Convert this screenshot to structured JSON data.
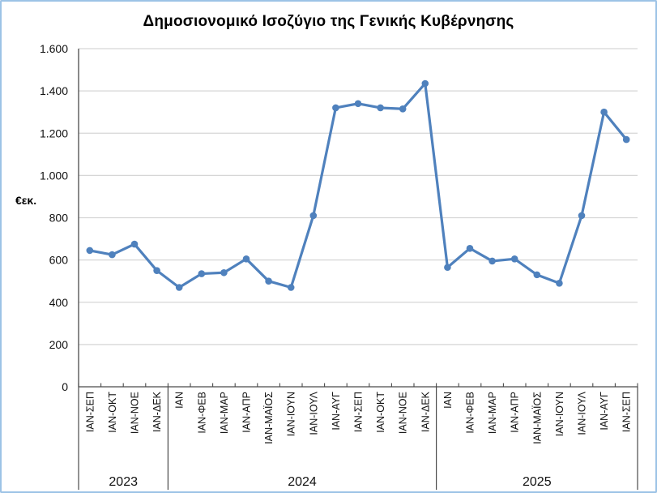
{
  "chart_data": {
    "type": "line",
    "title": "Δημοσιονομικό Ισοζύγιο της Γενικής Κυβέρνησης",
    "xlabel": "",
    "ylabel": "€εκ.",
    "ylim": [
      0,
      1600
    ],
    "ytick_step": 200,
    "ytick_labels": [
      "0",
      "200",
      "400",
      "600",
      "800",
      "1.000",
      "1.200",
      "1.400",
      "1.600"
    ],
    "grid": true,
    "legend": false,
    "categories": [
      "ΙΑΝ-ΣΕΠ",
      "ΙΑΝ-ΟΚΤ",
      "ΙΑΝ-ΝΟΕ",
      "ΙΑΝ-ΔΕΚ",
      "ΙΑΝ",
      "ΙΑΝ-ΦΕΒ",
      "ΙΑΝ-ΜΑΡ",
      "ΙΑΝ-ΑΠΡ",
      "ΙΑΝ-ΜΑΪΟΣ",
      "ΙΑΝ-ΙΟΥΝ",
      "ΙΑΝ-ΙΟΥΛ",
      "ΙΑΝ-ΑΥΓ",
      "ΙΑΝ-ΣΕΠ",
      "ΙΑΝ-ΟΚΤ",
      "ΙΑΝ-ΝΟΕ",
      "ΙΑΝ-ΔΕΚ",
      "ΙΑΝ",
      "ΙΑΝ-ΦΕΒ",
      "ΙΑΝ-ΜΑΡ",
      "ΙΑΝ-ΑΠΡ",
      "ΙΑΝ-ΜΑΪΟΣ",
      "ΙΑΝ-ΙΟΥΝ",
      "ΙΑΝ-ΙΟΥΛ",
      "ΙΑΝ-ΑΥΓ",
      "ΙΑΝ-ΣΕΠ"
    ],
    "values": [
      645,
      625,
      675,
      550,
      470,
      535,
      540,
      605,
      500,
      470,
      810,
      1320,
      1340,
      1320,
      1315,
      1435,
      565,
      655,
      595,
      605,
      530,
      490,
      810,
      1300,
      1170
    ],
    "groups": [
      {
        "label": "2023",
        "count": 4
      },
      {
        "label": "2024",
        "count": 12
      },
      {
        "label": "2025",
        "count": 9
      }
    ],
    "colors": {
      "series": "#4f81bd",
      "gridline": "#d6d6d6",
      "axis": "#4a4a4a",
      "frame_border": "#9dc3e6",
      "background": "#ffffff"
    }
  }
}
